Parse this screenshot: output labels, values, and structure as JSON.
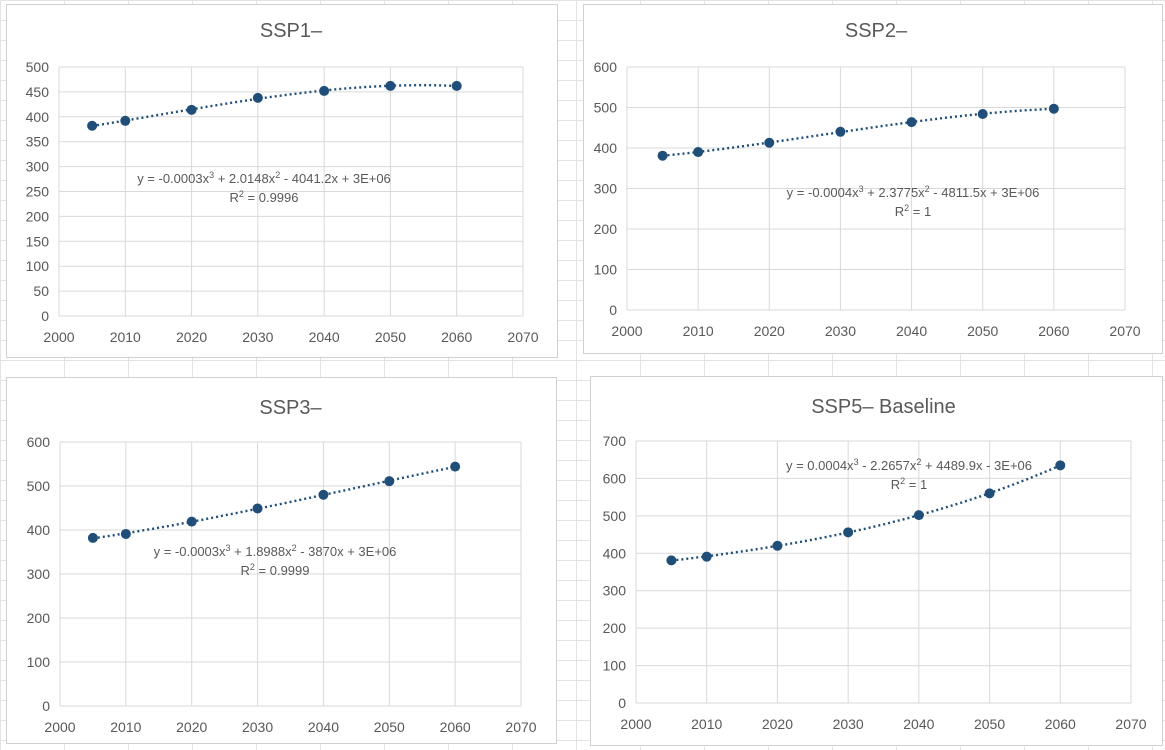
{
  "colors": {
    "series": "#1f4e79",
    "grid": "#d9d9d9",
    "text": "#595959"
  },
  "chart_data": [
    {
      "type": "scatter",
      "title": "SSP1–",
      "x": [
        2005,
        2010,
        2020,
        2030,
        2040,
        2050,
        2060
      ],
      "y": [
        382,
        392,
        414,
        438,
        452,
        462,
        462
      ],
      "xlim": [
        2000,
        2070
      ],
      "ylim": [
        0,
        500
      ],
      "xticks": [
        "2000",
        "2010",
        "2020",
        "2030",
        "2040",
        "2050",
        "2060",
        "2070"
      ],
      "yticks": [
        "0",
        "50",
        "100",
        "150",
        "200",
        "250",
        "300",
        "350",
        "400",
        "450",
        "500"
      ],
      "trendline": {
        "type": "polynomial",
        "order": 3,
        "style": "dotted"
      },
      "equation": {
        "base": "y = -0.0003x",
        "p1": "3",
        "mid": " + 2.0148x",
        "p2": "2",
        "tail": " - 4041.2x + 3E+06"
      },
      "r2": {
        "base": "R",
        "sup": "2",
        "rest": " = 0.9996"
      },
      "grid": true,
      "legend": "none"
    },
    {
      "type": "scatter",
      "title": "SSP2–",
      "x": [
        2005,
        2010,
        2020,
        2030,
        2040,
        2050,
        2060
      ],
      "y": [
        381,
        390,
        413,
        440,
        464,
        484,
        497
      ],
      "xlim": [
        2000,
        2070
      ],
      "ylim": [
        0,
        600
      ],
      "xticks": [
        "2000",
        "2010",
        "2020",
        "2030",
        "2040",
        "2050",
        "2060",
        "2070"
      ],
      "yticks": [
        "0",
        "100",
        "200",
        "300",
        "400",
        "500",
        "600"
      ],
      "trendline": {
        "type": "polynomial",
        "order": 3,
        "style": "dotted"
      },
      "equation": {
        "base": "y = -0.0004x",
        "p1": "3",
        "mid": " + 2.3775x",
        "p2": "2",
        "tail": " - 4811.5x + 3E+06"
      },
      "r2": {
        "base": "R",
        "sup": "2",
        "rest": " = 1"
      },
      "grid": true,
      "legend": "none"
    },
    {
      "type": "scatter",
      "title": "SSP3–",
      "x": [
        2005,
        2010,
        2020,
        2030,
        2040,
        2050,
        2060
      ],
      "y": [
        382,
        391,
        419,
        449,
        480,
        511,
        544
      ],
      "xlim": [
        2000,
        2070
      ],
      "ylim": [
        0,
        600
      ],
      "xticks": [
        "2000",
        "2010",
        "2020",
        "2030",
        "2040",
        "2050",
        "2060",
        "2070"
      ],
      "yticks": [
        "0",
        "100",
        "200",
        "300",
        "400",
        "500",
        "600"
      ],
      "trendline": {
        "type": "polynomial",
        "order": 3,
        "style": "dotted"
      },
      "equation": {
        "base": "y = -0.0003x",
        "p1": "3",
        "mid": " + 1.8988x",
        "p2": "2",
        "tail": " - 3870x + 3E+06"
      },
      "r2": {
        "base": "R",
        "sup": "2",
        "rest": " = 0.9999"
      },
      "grid": true,
      "legend": "none"
    },
    {
      "type": "scatter",
      "title": "SSP5– Baseline",
      "x": [
        2005,
        2010,
        2020,
        2030,
        2040,
        2050,
        2060
      ],
      "y": [
        381,
        391,
        420,
        456,
        502,
        560,
        635
      ],
      "xlim": [
        2000,
        2070
      ],
      "ylim": [
        0,
        700
      ],
      "xticks": [
        "2000",
        "2010",
        "2020",
        "2030",
        "2040",
        "2050",
        "2060",
        "2070"
      ],
      "yticks": [
        "0",
        "100",
        "200",
        "300",
        "400",
        "500",
        "600",
        "700"
      ],
      "trendline": {
        "type": "polynomial",
        "order": 3,
        "style": "dotted"
      },
      "equation": {
        "base": "y = 0.0004x",
        "p1": "3",
        "mid": " - 2.2657x",
        "p2": "2",
        "tail": " + 4489.9x - 3E+06"
      },
      "r2": {
        "base": "R",
        "sup": "2",
        "rest": " = 1"
      },
      "grid": true,
      "legend": "none"
    }
  ]
}
